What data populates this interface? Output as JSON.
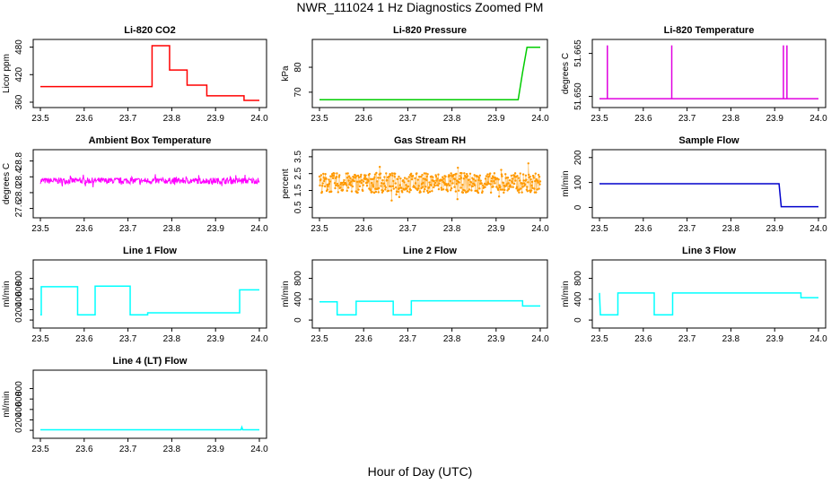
{
  "figure": {
    "title": "NWR_111024  1 Hz Diagnostics Zoomed PM",
    "xlabel": "Hour of Day (UTC)"
  },
  "chart_data": [
    {
      "type": "line",
      "title": "Li-820 CO2",
      "ylabel": "Licor ppm",
      "color": "#ff0000",
      "xlim": [
        23.5,
        24.0
      ],
      "ylim": [
        360,
        485
      ],
      "xticks": [
        "23.5",
        "23.6",
        "23.7",
        "23.8",
        "23.9",
        "24.0"
      ],
      "yticks": [
        {
          "value": 360,
          "label": "360"
        },
        {
          "value": 420,
          "label": "420"
        },
        {
          "value": 480,
          "label": "480"
        }
      ],
      "series": [
        {
          "x": [
            23.5,
            23.755,
            23.755,
            23.795,
            23.795,
            23.835,
            23.835,
            23.88,
            23.88,
            23.965,
            23.965,
            24.0
          ],
          "y": [
            394,
            394,
            483,
            483,
            430,
            430,
            397,
            397,
            374,
            374,
            364,
            364
          ]
        }
      ]
    },
    {
      "type": "line",
      "title": "Li-820 Pressure",
      "ylabel": "kPa",
      "color": "#00cc00",
      "xlim": [
        23.5,
        24.0
      ],
      "ylim": [
        66,
        89
      ],
      "xticks": [
        "23.5",
        "23.6",
        "23.7",
        "23.8",
        "23.9",
        "24.0"
      ],
      "yticks": [
        {
          "value": 70,
          "label": "70"
        },
        {
          "value": 80,
          "label": "80"
        }
      ],
      "series": [
        {
          "x": [
            23.5,
            23.95,
            23.96,
            23.97,
            23.975,
            24.0
          ],
          "y": [
            67,
            67,
            78,
            88,
            88,
            88
          ]
        }
      ]
    },
    {
      "type": "line",
      "title": "Li-820 Temperature",
      "ylabel": "degrees C",
      "color": "#e000e0",
      "xlim": [
        23.5,
        24.0
      ],
      "ylim": [
        51.648,
        51.668
      ],
      "xticks": [
        "23.5",
        "23.6",
        "23.7",
        "23.8",
        "23.9",
        "24.0"
      ],
      "yticks": [
        {
          "value": 51.65,
          "label": "51.650"
        },
        {
          "value": 51.665,
          "label": "51.665"
        }
      ],
      "series": [
        {
          "x": [
            23.5,
            23.518,
            23.518,
            23.518,
            23.665,
            23.665,
            23.665,
            23.92,
            23.92,
            23.92,
            23.928,
            23.928,
            23.928,
            24.0
          ],
          "y": [
            51.6492,
            51.6492,
            51.6678,
            51.6492,
            51.6492,
            51.6678,
            51.6492,
            51.6492,
            51.6678,
            51.6492,
            51.6492,
            51.6678,
            51.6492,
            51.6492
          ]
        }
      ]
    },
    {
      "type": "line",
      "title": "Ambient Box Temperature",
      "ylabel": "degrees C",
      "color": "#ff00ff",
      "noise": 0.12,
      "xlim": [
        23.5,
        24.0
      ],
      "ylim": [
        27.5,
        28.95
      ],
      "xticks": [
        "23.5",
        "23.6",
        "23.7",
        "23.8",
        "23.9",
        "24.0"
      ],
      "yticks": [
        {
          "value": 27.6,
          "label": "27.6"
        },
        {
          "value": 28.0,
          "label": "28.0"
        },
        {
          "value": 28.4,
          "label": "28.4"
        },
        {
          "value": 28.8,
          "label": "28.8"
        }
      ],
      "series": [
        {
          "x": [
            23.5,
            24.0
          ],
          "y": [
            28.3,
            28.3
          ]
        }
      ]
    },
    {
      "type": "scatter",
      "title": "Gas Stream RH",
      "ylabel": "percent",
      "color": "#ff9900",
      "noise": 0.38,
      "xlim": [
        23.5,
        24.0
      ],
      "ylim": [
        0.2,
        3.6
      ],
      "xticks": [
        "23.5",
        "23.6",
        "23.7",
        "23.8",
        "23.9",
        "24.0"
      ],
      "yticks": [
        {
          "value": 0.5,
          "label": "0.5"
        },
        {
          "value": 1.5,
          "label": "1.5"
        },
        {
          "value": 2.5,
          "label": "2.5"
        },
        {
          "value": 3.5,
          "label": "3.5"
        }
      ],
      "series": [
        {
          "x": [
            23.5,
            24.0
          ],
          "y": [
            1.95,
            1.95
          ]
        }
      ]
    },
    {
      "type": "line",
      "title": "Sample Flow",
      "ylabel": "ml/min",
      "color": "#0000cc",
      "xlim": [
        23.5,
        24.0
      ],
      "ylim": [
        -20,
        210
      ],
      "xticks": [
        "23.5",
        "23.6",
        "23.7",
        "23.8",
        "23.9",
        "24.0"
      ],
      "yticks": [
        {
          "value": 0,
          "label": "0"
        },
        {
          "value": 100,
          "label": "100"
        },
        {
          "value": 200,
          "label": "200"
        }
      ],
      "series": [
        {
          "x": [
            23.5,
            23.91,
            23.915,
            24.0
          ],
          "y": [
            95,
            95,
            3,
            3
          ]
        }
      ]
    },
    {
      "type": "line",
      "title": "Line 1 Flow",
      "ylabel": "ml/min",
      "color": "#00ffff",
      "xlim": [
        23.5,
        24.0
      ],
      "ylim": [
        -50,
        1050
      ],
      "xticks": [
        "23.5",
        "23.6",
        "23.7",
        "23.8",
        "23.9",
        "24.0"
      ],
      "yticks": [
        {
          "value": 0,
          "label": "0"
        },
        {
          "value": 200,
          "label": "200"
        },
        {
          "value": 400,
          "label": "400"
        },
        {
          "value": 600,
          "label": "600"
        },
        {
          "value": 800,
          "label": "800"
        }
      ],
      "series": [
        {
          "x": [
            23.5,
            23.502,
            23.502,
            23.585,
            23.585,
            23.625,
            23.625,
            23.705,
            23.705,
            23.745,
            23.745,
            23.955,
            23.955,
            24.0
          ],
          "y": [
            100,
            100,
            640,
            640,
            100,
            100,
            650,
            650,
            100,
            100,
            140,
            140,
            580,
            580
          ]
        }
      ]
    },
    {
      "type": "line",
      "title": "Line 2 Flow",
      "ylabel": "ml/min",
      "color": "#00ffff",
      "xlim": [
        23.5,
        24.0
      ],
      "ylim": [
        -50,
        1050
      ],
      "xticks": [
        "23.5",
        "23.6",
        "23.7",
        "23.8",
        "23.9",
        "24.0"
      ],
      "yticks": [
        {
          "value": 0,
          "label": "0"
        },
        {
          "value": 400,
          "label": "400"
        },
        {
          "value": 800,
          "label": "800"
        }
      ],
      "series": [
        {
          "x": [
            23.5,
            23.54,
            23.54,
            23.583,
            23.583,
            23.667,
            23.667,
            23.708,
            23.708,
            23.96,
            23.96,
            24.0
          ],
          "y": [
            350,
            350,
            100,
            100,
            360,
            360,
            100,
            100,
            370,
            370,
            270,
            270
          ]
        }
      ]
    },
    {
      "type": "line",
      "title": "Line 3 Flow",
      "ylabel": "ml/min",
      "color": "#00ffff",
      "xlim": [
        23.5,
        24.0
      ],
      "ylim": [
        -50,
        1050
      ],
      "xticks": [
        "23.5",
        "23.6",
        "23.7",
        "23.8",
        "23.9",
        "24.0"
      ],
      "yticks": [
        {
          "value": 0,
          "label": "0"
        },
        {
          "value": 400,
          "label": "400"
        },
        {
          "value": 800,
          "label": "800"
        }
      ],
      "series": [
        {
          "x": [
            23.5,
            23.502,
            23.502,
            23.542,
            23.542,
            23.625,
            23.625,
            23.667,
            23.667,
            23.96,
            23.96,
            24.0
          ],
          "y": [
            520,
            100,
            100,
            100,
            520,
            520,
            100,
            100,
            520,
            520,
            430,
            430
          ]
        }
      ]
    },
    {
      "type": "line",
      "title": "Line 4 (LT) Flow",
      "ylabel": "ml/min",
      "color": "#00ffff",
      "xlim": [
        23.5,
        24.0
      ],
      "ylim": [
        -50,
        1050
      ],
      "xticks": [
        "23.5",
        "23.6",
        "23.7",
        "23.8",
        "23.9",
        "24.0"
      ],
      "yticks": [
        {
          "value": 0,
          "label": "0"
        },
        {
          "value": 200,
          "label": "200"
        },
        {
          "value": 400,
          "label": "400"
        },
        {
          "value": 600,
          "label": "600"
        },
        {
          "value": 800,
          "label": "800"
        }
      ],
      "series": [
        {
          "x": [
            23.5,
            23.958,
            23.96,
            23.962,
            24.0
          ],
          "y": [
            10,
            10,
            60,
            10,
            10
          ]
        }
      ]
    }
  ]
}
